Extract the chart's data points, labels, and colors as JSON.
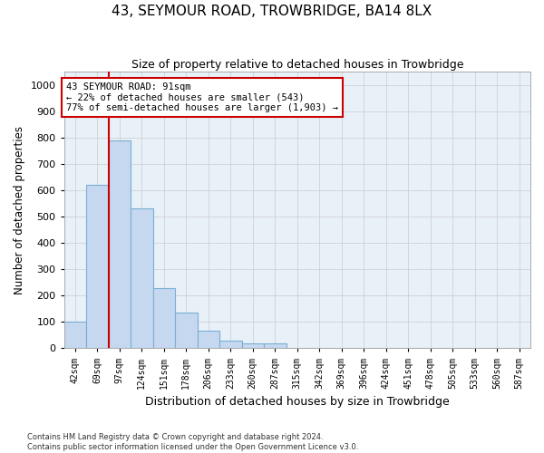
{
  "title": "43, SEYMOUR ROAD, TROWBRIDGE, BA14 8LX",
  "subtitle": "Size of property relative to detached houses in Trowbridge",
  "xlabel": "Distribution of detached houses by size in Trowbridge",
  "ylabel": "Number of detached properties",
  "bar_color": "#c5d8ef",
  "bar_edge_color": "#7aafd4",
  "background_color": "#e8f0f8",
  "bins": [
    "42sqm",
    "69sqm",
    "97sqm",
    "124sqm",
    "151sqm",
    "178sqm",
    "206sqm",
    "233sqm",
    "260sqm",
    "287sqm",
    "315sqm",
    "342sqm",
    "369sqm",
    "396sqm",
    "424sqm",
    "451sqm",
    "478sqm",
    "505sqm",
    "533sqm",
    "560sqm",
    "587sqm"
  ],
  "values": [
    100,
    620,
    790,
    530,
    230,
    135,
    65,
    30,
    20,
    18,
    0,
    0,
    0,
    0,
    0,
    0,
    0,
    0,
    0,
    0,
    0
  ],
  "ylim": [
    0,
    1050
  ],
  "yticks": [
    0,
    100,
    200,
    300,
    400,
    500,
    600,
    700,
    800,
    900,
    1000
  ],
  "property_line_x": 1.5,
  "property_line_label": "43 SEYMOUR ROAD: 91sqm",
  "annotation_line1": "← 22% of detached houses are smaller (543)",
  "annotation_line2": "77% of semi-detached houses are larger (1,903) →",
  "annotation_box_color": "#ffffff",
  "annotation_box_edge_color": "#cc0000",
  "annotation_line_color": "#cc0000",
  "grid_color": "#cccccc",
  "footer1": "Contains HM Land Registry data © Crown copyright and database right 2024.",
  "footer2": "Contains public sector information licensed under the Open Government Licence v3.0."
}
